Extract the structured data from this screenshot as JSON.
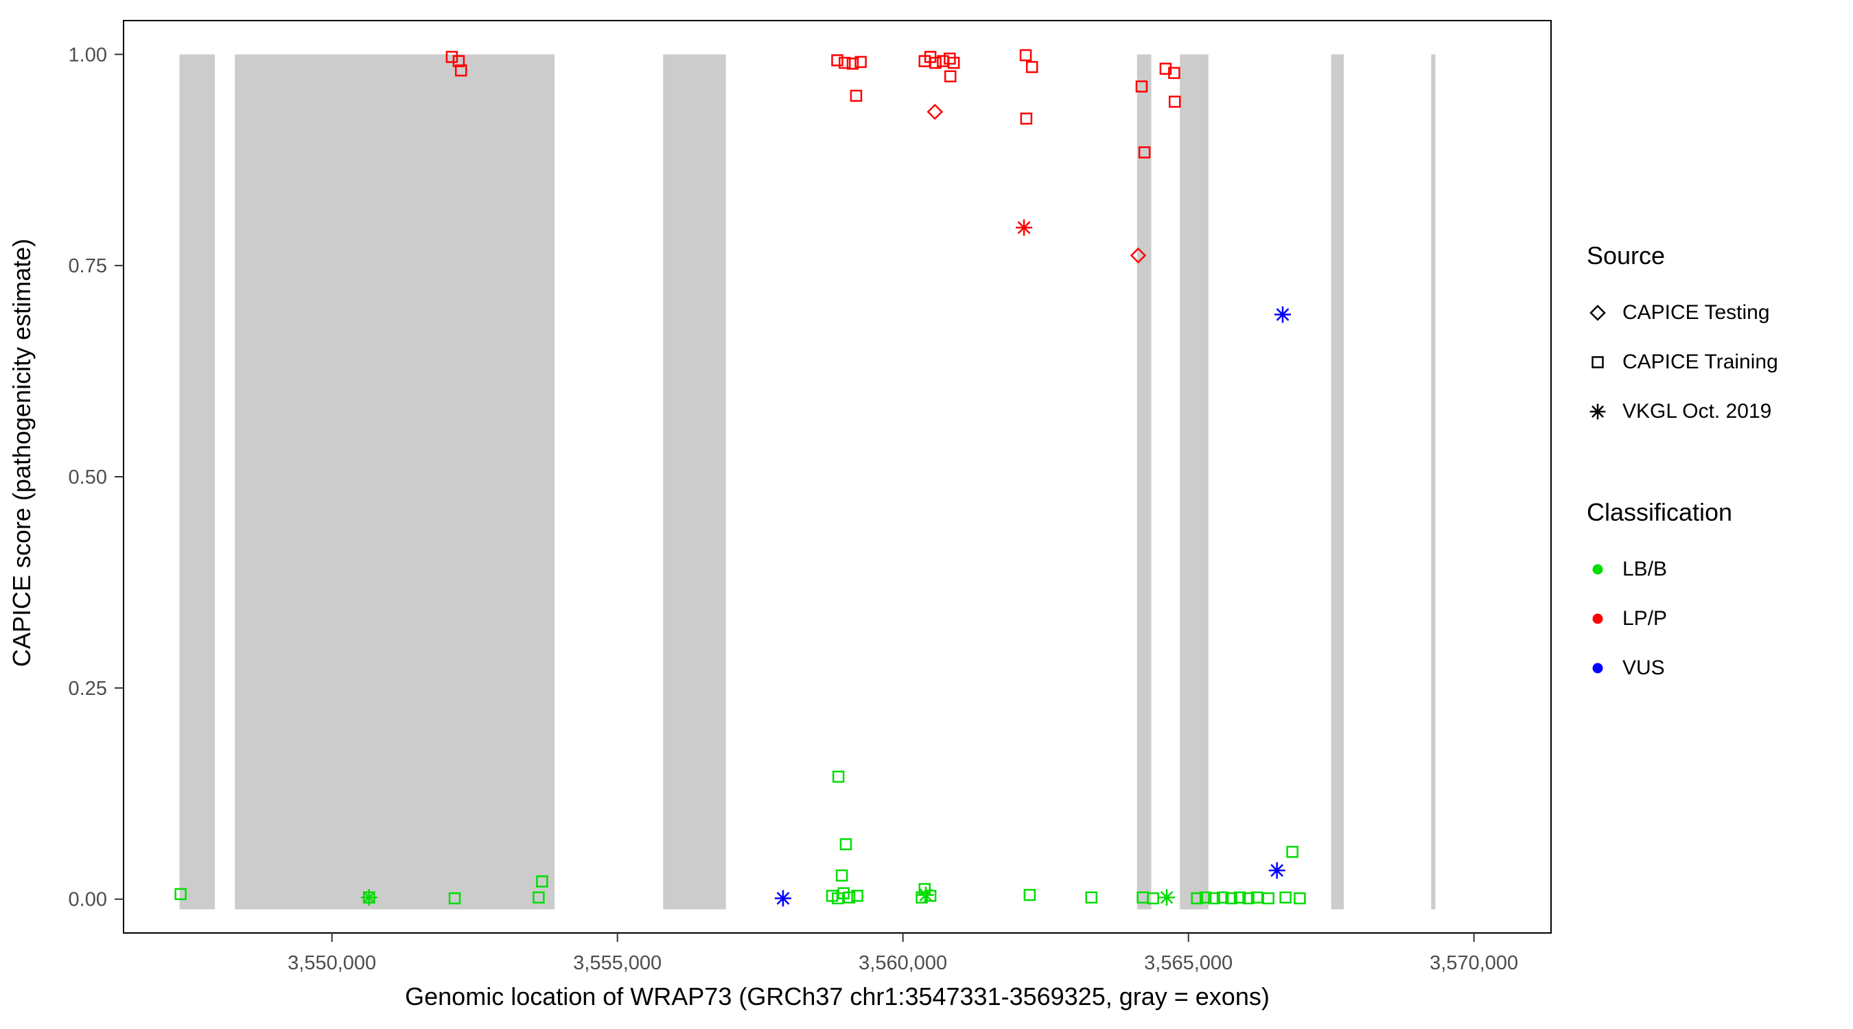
{
  "figure": {
    "background": "#FFFFFF"
  },
  "chart_data": {
    "type": "scatter",
    "title": "",
    "xlabel": "Genomic location of WRAP73 (GRCh37 chr1:3547331-3569325, gray = exons)",
    "ylabel": "CAPICE score (pathogenicity estimate)",
    "xlim": [
      3546350,
      3571350
    ],
    "ylim": [
      -0.04,
      1.04
    ],
    "x_ticks": [
      3550000,
      3555000,
      3560000,
      3565000,
      3570000
    ],
    "x_tick_labels": [
      "3,550,000",
      "3,555,000",
      "3,560,000",
      "3,565,000",
      "3,570,000"
    ],
    "y_ticks": [
      0.0,
      0.25,
      0.5,
      0.75,
      1.0
    ],
    "y_tick_labels": [
      "0.00",
      "0.25",
      "0.50",
      "0.75",
      "1.00"
    ],
    "grid": false,
    "legend_position": "right",
    "panel_border_color": "#000000",
    "tick_color": "#333333",
    "tick_label_color": "#4D4D4D",
    "axis_title_color": "#000000",
    "exon_color": "#CCCCCC",
    "exon_y_range": [
      -0.012,
      1.0
    ],
    "exons": [
      [
        3547331,
        3547950
      ],
      [
        3548300,
        3553900
      ],
      [
        3555800,
        3556900
      ],
      [
        3564100,
        3564350
      ],
      [
        3564850,
        3565350
      ],
      [
        3567500,
        3567720
      ],
      [
        3569250,
        3569325
      ]
    ],
    "series": [
      {
        "name": "LP/P CAPICE Training",
        "classification": "LP/P",
        "source": "CAPICE Training",
        "shape": "square",
        "color": "#FF0000",
        "points": [
          [
            3552100,
            0.997
          ],
          [
            3552220,
            0.992
          ],
          [
            3552260,
            0.981
          ],
          [
            3558850,
            0.993
          ],
          [
            3558980,
            0.99
          ],
          [
            3559120,
            0.989
          ],
          [
            3559260,
            0.991
          ],
          [
            3559180,
            0.951
          ],
          [
            3560380,
            0.992
          ],
          [
            3560480,
            0.997
          ],
          [
            3560570,
            0.99
          ],
          [
            3560700,
            0.992
          ],
          [
            3560820,
            0.995
          ],
          [
            3560890,
            0.99
          ],
          [
            3560830,
            0.974
          ],
          [
            3562150,
            0.999
          ],
          [
            3562260,
            0.985
          ],
          [
            3562160,
            0.924
          ],
          [
            3564180,
            0.962
          ],
          [
            3564230,
            0.884
          ],
          [
            3564600,
            0.983
          ],
          [
            3564750,
            0.978
          ],
          [
            3564760,
            0.944
          ]
        ]
      },
      {
        "name": "LP/P CAPICE Testing",
        "classification": "LP/P",
        "source": "CAPICE Testing",
        "shape": "diamond",
        "color": "#FF0000",
        "points": [
          [
            3560560,
            0.932
          ],
          [
            3564120,
            0.762
          ]
        ]
      },
      {
        "name": "LP/P VKGL Oct. 2019",
        "classification": "LP/P",
        "source": "VKGL Oct. 2019",
        "shape": "asterisk",
        "color": "#FF0000",
        "points": [
          [
            3562120,
            0.795
          ]
        ]
      },
      {
        "name": "VUS VKGL Oct. 2019",
        "classification": "VUS",
        "source": "VKGL Oct. 2019",
        "shape": "asterisk",
        "color": "#0000FF",
        "points": [
          [
            3557900,
            0.001
          ],
          [
            3566650,
            0.692
          ],
          [
            3566550,
            0.034
          ]
        ]
      },
      {
        "name": "LB/B CAPICE Training",
        "classification": "LB/B",
        "source": "CAPICE Training",
        "shape": "square",
        "color": "#00DD00",
        "points": [
          [
            3547350,
            0.006
          ],
          [
            3550650,
            0.002
          ],
          [
            3552150,
            0.001
          ],
          [
            3553620,
            0.002
          ],
          [
            3553680,
            0.021
          ],
          [
            3558870,
            0.145
          ],
          [
            3559000,
            0.065
          ],
          [
            3558930,
            0.028
          ],
          [
            3558760,
            0.004
          ],
          [
            3558860,
            0.001
          ],
          [
            3558960,
            0.007
          ],
          [
            3559060,
            0.002
          ],
          [
            3559200,
            0.004
          ],
          [
            3560330,
            0.002
          ],
          [
            3560380,
            0.012
          ],
          [
            3560480,
            0.004
          ],
          [
            3562220,
            0.005
          ],
          [
            3563300,
            0.002
          ],
          [
            3564200,
            0.002
          ],
          [
            3564380,
            0.001
          ],
          [
            3565150,
            0.001
          ],
          [
            3565300,
            0.002
          ],
          [
            3565450,
            0.001
          ],
          [
            3565600,
            0.002
          ],
          [
            3565750,
            0.001
          ],
          [
            3565900,
            0.002
          ],
          [
            3566050,
            0.001
          ],
          [
            3566200,
            0.002
          ],
          [
            3566400,
            0.001
          ],
          [
            3566700,
            0.002
          ],
          [
            3566950,
            0.001
          ],
          [
            3566820,
            0.056
          ]
        ]
      },
      {
        "name": "LB/B VKGL Oct. 2019",
        "classification": "LB/B",
        "source": "VKGL Oct. 2019",
        "shape": "asterisk",
        "color": "#00DD00",
        "points": [
          [
            3550650,
            0.002
          ],
          [
            3560400,
            0.005
          ],
          [
            3564620,
            0.002
          ]
        ]
      }
    ]
  },
  "legend": {
    "source": {
      "title": "Source",
      "items": [
        {
          "label": "CAPICE Testing",
          "shape": "diamond",
          "color": "#000000"
        },
        {
          "label": "CAPICE Training",
          "shape": "square",
          "color": "#000000"
        },
        {
          "label": "VKGL Oct. 2019",
          "shape": "asterisk",
          "color": "#000000"
        }
      ]
    },
    "classification": {
      "title": "Classification",
      "items": [
        {
          "label": "LB/B",
          "shape": "circle",
          "color": "#00DD00"
        },
        {
          "label": "LP/P",
          "shape": "circle",
          "color": "#FF0000"
        },
        {
          "label": "VUS",
          "shape": "circle",
          "color": "#0000FF"
        }
      ]
    }
  }
}
